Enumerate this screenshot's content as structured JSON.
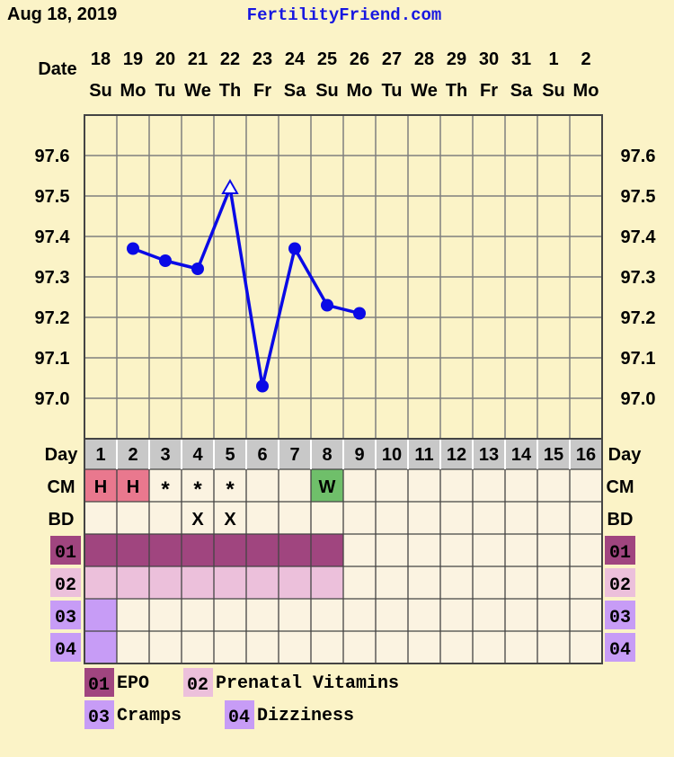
{
  "header": {
    "date": "Aug 18, 2019",
    "site": "FertilityFriend.com"
  },
  "row_labels": {
    "date": "Date",
    "day": "Day",
    "cm": "CM",
    "bd": "BD"
  },
  "chart_data": {
    "type": "line",
    "dates": [
      "18",
      "19",
      "20",
      "21",
      "22",
      "23",
      "24",
      "25",
      "26",
      "27",
      "28",
      "29",
      "30",
      "31",
      "1",
      "2"
    ],
    "weekdays": [
      "Su",
      "Mo",
      "Tu",
      "We",
      "Th",
      "Fr",
      "Sa",
      "Su",
      "Mo",
      "Tu",
      "We",
      "Th",
      "Fr",
      "Sa",
      "Su",
      "Mo"
    ],
    "cycle_days": [
      1,
      2,
      3,
      4,
      5,
      6,
      7,
      8,
      9,
      10,
      11,
      12,
      13,
      14,
      15,
      16
    ],
    "y_ticks": [
      "97.6",
      "97.5",
      "97.4",
      "97.3",
      "97.2",
      "97.1",
      "97.0"
    ],
    "ylim": [
      96.9,
      97.7
    ],
    "series": [
      {
        "values": [
          null,
          97.37,
          97.34,
          97.32,
          97.52,
          97.03,
          97.37,
          97.23,
          97.21,
          null,
          null,
          null,
          null,
          null,
          null,
          null
        ],
        "color": "#0a0ae6",
        "open_marker_days": [
          5
        ]
      }
    ],
    "cm": [
      "H",
      "H",
      "*",
      "*",
      "*",
      "",
      "",
      "W",
      "",
      "",
      "",
      "",
      "",
      "",
      "",
      ""
    ],
    "cm_colors": {
      "H": "#e9788e",
      "W": "#6fbf6a"
    },
    "bd": [
      "",
      "",
      "",
      "X",
      "X",
      "",
      "",
      "",
      "",
      "",
      "",
      "",
      "",
      "",
      "",
      ""
    ],
    "medications": [
      {
        "code": "01",
        "name": "EPO",
        "days": [
          1,
          2,
          3,
          4,
          5,
          6,
          7,
          8
        ],
        "color": "#a0457f"
      },
      {
        "code": "02",
        "name": "Prenatal Vitamins",
        "days": [
          1,
          2,
          3,
          4,
          5,
          6,
          7,
          8
        ],
        "color": "#ecc0db"
      },
      {
        "code": "03",
        "name": "Cramps",
        "days": [
          1
        ],
        "color": "#c79cf6"
      },
      {
        "code": "04",
        "name": "Dizziness",
        "days": [
          1
        ],
        "color": "#c79cf6"
      }
    ]
  }
}
